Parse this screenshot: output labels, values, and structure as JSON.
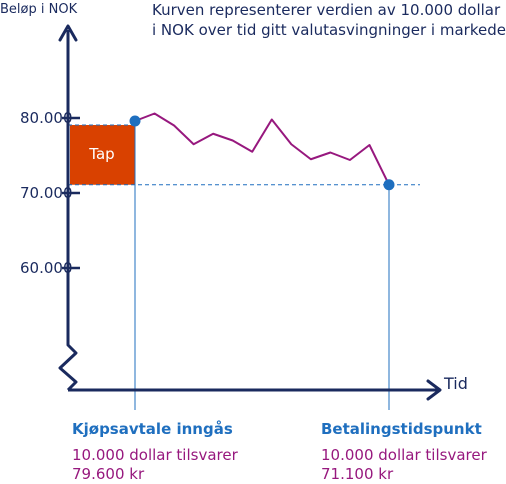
{
  "chart_data": {
    "type": "line",
    "ylabel": "Beløp i NOK",
    "xlabel": "Tid",
    "description": [
      "Kurven representerer verdien av 10.000 dollar",
      "i NOK over tid gitt valutasvingninger i markedet."
    ],
    "y_ticks": [
      {
        "value": 80000,
        "label": "80.000"
      },
      {
        "value": 70000,
        "label": "70.000"
      },
      {
        "value": 60000,
        "label": "60.000"
      }
    ],
    "ylim": [
      50000,
      88000
    ],
    "series": [
      {
        "x": [
          0,
          1,
          2,
          3,
          4,
          5,
          6,
          7,
          8,
          9,
          10,
          11,
          12,
          13
        ],
        "values": [
          79600,
          80600,
          79000,
          76500,
          77900,
          77000,
          75500,
          79800,
          76500,
          74500,
          75400,
          74400,
          76400,
          71100
        ]
      }
    ],
    "loss_label": "Tap",
    "events": [
      {
        "title": "Kjøpsavtale inngås",
        "line1": "10.000 dollar tilsvarer",
        "line2": "79.600 kr",
        "x": 0,
        "value": 79600
      },
      {
        "title": "Betalingstidspunkt",
        "line1": "10.000 dollar tilsvarer",
        "line2": "71.100 kr",
        "x": 13,
        "value": 71100
      }
    ],
    "colors": {
      "axis": "#1a2a5e",
      "line": "#97187e",
      "loss": "#d94100",
      "marker": "#1f6fbf",
      "guide": "#1f6fbf"
    }
  }
}
